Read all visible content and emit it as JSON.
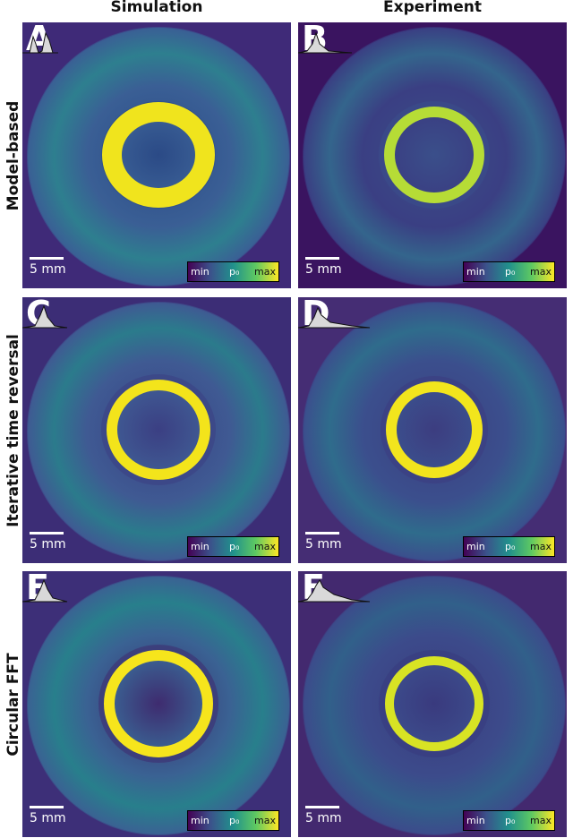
{
  "columns": [
    "Simulation",
    "Experiment"
  ],
  "rows": [
    "Model-based",
    "Iterative time reversal",
    "Circular FFT"
  ],
  "panels": [
    {
      "letter": "A",
      "scale": "5 mm",
      "cbar": {
        "min": "min",
        "mid": "p₀",
        "max": "max"
      }
    },
    {
      "letter": "B",
      "scale": "5 mm",
      "cbar": {
        "min": "min",
        "mid": "p₀",
        "max": "max"
      }
    },
    {
      "letter": "C",
      "scale": "5 mm",
      "cbar": {
        "min": "min",
        "mid": "p₀",
        "max": "max"
      }
    },
    {
      "letter": "D",
      "scale": "5 mm",
      "cbar": {
        "min": "min",
        "mid": "p₀",
        "max": "max"
      }
    },
    {
      "letter": "E",
      "scale": "5 mm",
      "cbar": {
        "min": "min",
        "mid": "p₀",
        "max": "max"
      }
    },
    {
      "letter": "F",
      "scale": "5 mm",
      "cbar": {
        "min": "min",
        "mid": "p₀",
        "max": "max"
      }
    }
  ],
  "colors": {
    "background_dark": "#3d1e6b",
    "disc": "#2a6f8e",
    "ring": "#f2e51a",
    "ring_dim": "#9fd63e"
  },
  "colormap": "viridis"
}
